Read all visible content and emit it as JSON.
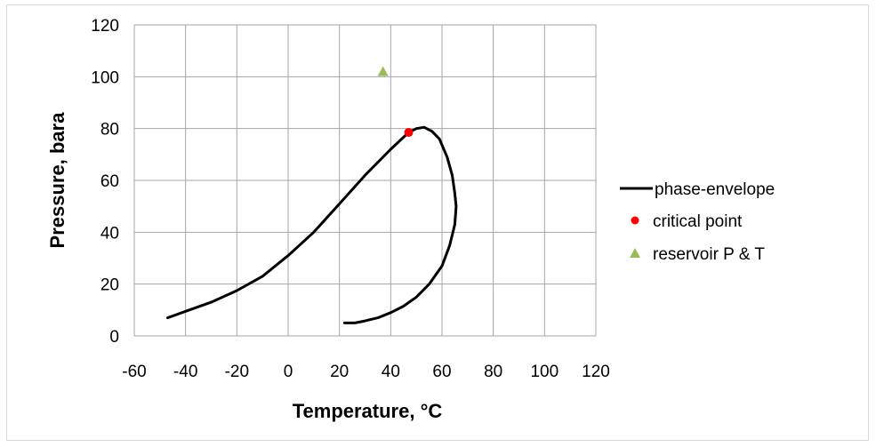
{
  "chart_data": {
    "type": "scatter",
    "title": "",
    "xlabel": "Temperature, °C",
    "ylabel": "Pressure, bara",
    "xlim": [
      -60,
      120
    ],
    "ylim": [
      0,
      120
    ],
    "xticks": [
      "-60",
      "-40",
      "-20",
      "0",
      "20",
      "40",
      "60",
      "80",
      "100",
      "120"
    ],
    "yticks": [
      "0",
      "20",
      "40",
      "60",
      "80",
      "100",
      "120"
    ],
    "grid": true,
    "legend_position": "right",
    "series": [
      {
        "name": "phase-envelope",
        "kind": "line",
        "color": "#000000",
        "x": [
          -47,
          -40,
          -30,
          -20,
          -10,
          0,
          10,
          20,
          30,
          40,
          47,
          50,
          53,
          56,
          59,
          62,
          64,
          65,
          65.5,
          65,
          63,
          60,
          55,
          50,
          45,
          40,
          35,
          30,
          26,
          22
        ],
        "y": [
          7,
          9.5,
          13,
          17.5,
          23,
          31,
          40,
          51,
          62,
          72,
          78.5,
          80,
          80.5,
          79,
          76,
          69,
          62,
          55,
          50,
          43,
          35,
          27,
          20,
          15,
          11.5,
          9,
          7,
          5.8,
          5,
          5
        ]
      },
      {
        "name": "critical point",
        "kind": "marker",
        "marker": "circle",
        "color": "#ff0000",
        "x": [
          47
        ],
        "y": [
          78.5
        ]
      },
      {
        "name": "reservoir P & T",
        "kind": "marker",
        "marker": "triangle",
        "color": "#9bbb59",
        "x": [
          37
        ],
        "y": [
          102
        ]
      }
    ]
  }
}
